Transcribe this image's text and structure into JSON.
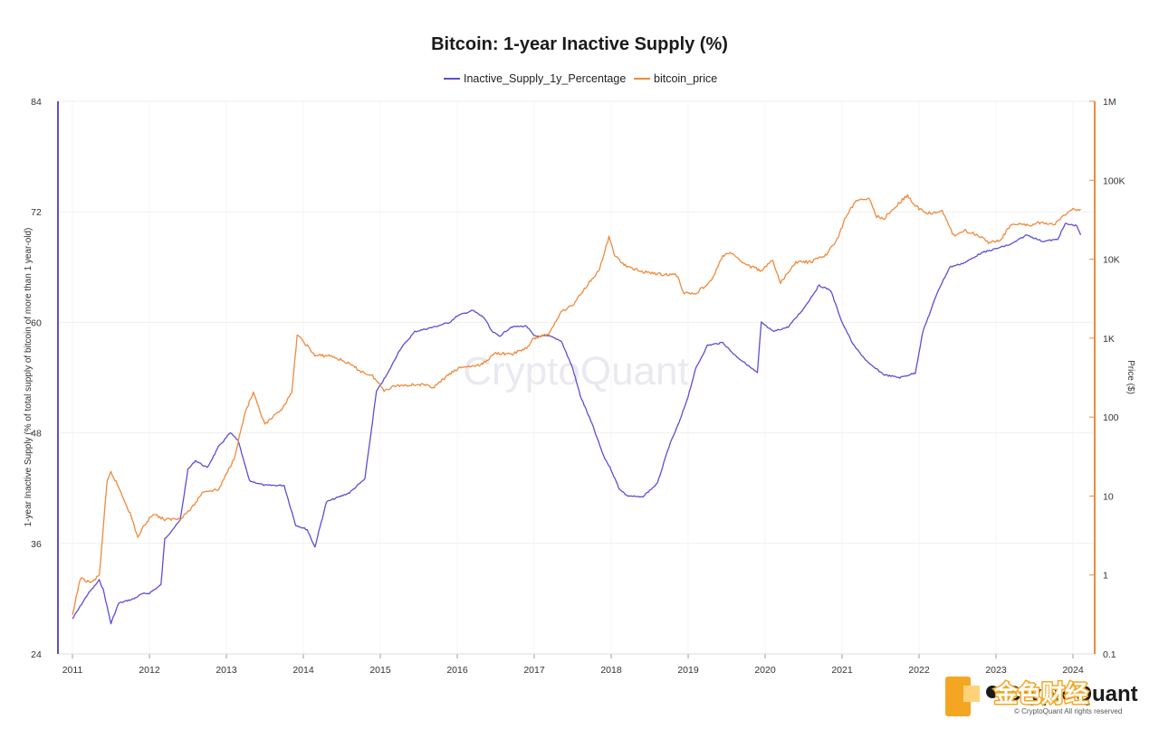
{
  "chart_data": {
    "type": "line",
    "title": "Bitcoin: 1-year Inactive Supply (%)",
    "x_ticks": [
      "2011",
      "2012",
      "2013",
      "2014",
      "2015",
      "2016",
      "2017",
      "2018",
      "2019",
      "2020",
      "2021",
      "2022",
      "2023",
      "2024"
    ],
    "y_left": {
      "label": "1-year Inactive Supply (% of total supply of bitcoin of more than 1 year-old)",
      "ylim": [
        24,
        84
      ],
      "ticks": [
        "84",
        "72",
        "60",
        "48",
        "36",
        "24"
      ]
    },
    "y_right": {
      "label": "Price ($)",
      "scale": "log",
      "ylim": [
        0.1,
        1000000
      ],
      "ticks": [
        "1M",
        "100K",
        "10K",
        "1K",
        "100",
        "10",
        "1",
        "0.1"
      ]
    },
    "grid": true,
    "legend": "top-center",
    "series": [
      {
        "name": "Inactive_Supply_1y_Percentage",
        "axis": "left",
        "color": "#5b4fd6",
        "points": [
          [
            2011.0,
            27.8
          ],
          [
            2011.2,
            30.5
          ],
          [
            2011.35,
            32.0
          ],
          [
            2011.4,
            31.0
          ],
          [
            2011.5,
            27.3
          ],
          [
            2011.6,
            29.5
          ],
          [
            2011.8,
            30.0
          ],
          [
            2011.9,
            30.5
          ],
          [
            2012.0,
            30.6
          ],
          [
            2012.15,
            31.5
          ],
          [
            2012.2,
            36.5
          ],
          [
            2012.4,
            38.5
          ],
          [
            2012.5,
            44.0
          ],
          [
            2012.6,
            45.0
          ],
          [
            2012.75,
            44.2
          ],
          [
            2012.9,
            46.5
          ],
          [
            2013.05,
            48.0
          ],
          [
            2013.15,
            47.2
          ],
          [
            2013.3,
            42.8
          ],
          [
            2013.5,
            42.3
          ],
          [
            2013.75,
            42.3
          ],
          [
            2013.9,
            38.0
          ],
          [
            2014.05,
            37.5
          ],
          [
            2014.15,
            35.6
          ],
          [
            2014.3,
            40.5
          ],
          [
            2014.6,
            41.5
          ],
          [
            2014.8,
            43.0
          ],
          [
            2014.95,
            52.5
          ],
          [
            2015.1,
            54.5
          ],
          [
            2015.25,
            57.0
          ],
          [
            2015.45,
            59.0
          ],
          [
            2015.7,
            59.5
          ],
          [
            2015.9,
            60.0
          ],
          [
            2016.0,
            60.7
          ],
          [
            2016.2,
            61.3
          ],
          [
            2016.35,
            60.5
          ],
          [
            2016.45,
            59.0
          ],
          [
            2016.55,
            58.5
          ],
          [
            2016.7,
            59.5
          ],
          [
            2016.9,
            59.6
          ],
          [
            2017.0,
            58.5
          ],
          [
            2017.2,
            58.5
          ],
          [
            2017.35,
            58.0
          ],
          [
            2017.5,
            55.0
          ],
          [
            2017.6,
            52.0
          ],
          [
            2017.75,
            49.0
          ],
          [
            2017.9,
            45.5
          ],
          [
            2018.0,
            44.0
          ],
          [
            2018.1,
            42.0
          ],
          [
            2018.2,
            41.2
          ],
          [
            2018.4,
            41.0
          ],
          [
            2018.6,
            42.5
          ],
          [
            2018.75,
            46.5
          ],
          [
            2018.9,
            49.5
          ],
          [
            2019.0,
            52.0
          ],
          [
            2019.1,
            55.0
          ],
          [
            2019.25,
            57.5
          ],
          [
            2019.45,
            57.8
          ],
          [
            2019.6,
            56.5
          ],
          [
            2019.75,
            55.5
          ],
          [
            2019.9,
            54.5
          ],
          [
            2019.95,
            60.0
          ],
          [
            2020.1,
            59.0
          ],
          [
            2020.3,
            59.5
          ],
          [
            2020.5,
            61.5
          ],
          [
            2020.7,
            64.0
          ],
          [
            2020.85,
            63.5
          ],
          [
            2021.0,
            60.0
          ],
          [
            2021.15,
            57.5
          ],
          [
            2021.35,
            55.5
          ],
          [
            2021.55,
            54.3
          ],
          [
            2021.75,
            54.0
          ],
          [
            2021.95,
            54.5
          ],
          [
            2022.05,
            59.0
          ],
          [
            2022.25,
            63.5
          ],
          [
            2022.4,
            66.0
          ],
          [
            2022.6,
            66.5
          ],
          [
            2022.8,
            67.5
          ],
          [
            2023.0,
            68.0
          ],
          [
            2023.2,
            68.5
          ],
          [
            2023.4,
            69.5
          ],
          [
            2023.6,
            68.8
          ],
          [
            2023.8,
            69.0
          ],
          [
            2023.9,
            70.7
          ],
          [
            2024.05,
            70.5
          ],
          [
            2024.1,
            69.5
          ]
        ]
      },
      {
        "name": "bitcoin_price",
        "axis": "right",
        "color": "#ef8a3c",
        "points": [
          [
            2011.0,
            0.3
          ],
          [
            2011.1,
            0.9
          ],
          [
            2011.25,
            0.8
          ],
          [
            2011.35,
            1.0
          ],
          [
            2011.45,
            15.0
          ],
          [
            2011.5,
            20.0
          ],
          [
            2011.6,
            13.0
          ],
          [
            2011.75,
            6.0
          ],
          [
            2011.85,
            3.0
          ],
          [
            2011.95,
            4.5
          ],
          [
            2012.05,
            6.0
          ],
          [
            2012.2,
            5.0
          ],
          [
            2012.4,
            5.2
          ],
          [
            2012.55,
            7.0
          ],
          [
            2012.7,
            11.5
          ],
          [
            2012.9,
            12.0
          ],
          [
            2013.1,
            30.0
          ],
          [
            2013.25,
            120.0
          ],
          [
            2013.35,
            200.0
          ],
          [
            2013.5,
            80.0
          ],
          [
            2013.7,
            120.0
          ],
          [
            2013.85,
            200.0
          ],
          [
            2013.92,
            1100.0
          ],
          [
            2014.05,
            800.0
          ],
          [
            2014.15,
            600.0
          ],
          [
            2014.35,
            600.0
          ],
          [
            2014.55,
            500.0
          ],
          [
            2014.75,
            380.0
          ],
          [
            2014.9,
            330.0
          ],
          [
            2015.05,
            220.0
          ],
          [
            2015.2,
            250.0
          ],
          [
            2015.5,
            260.0
          ],
          [
            2015.7,
            240.0
          ],
          [
            2015.9,
            350.0
          ],
          [
            2016.05,
            430.0
          ],
          [
            2016.3,
            450.0
          ],
          [
            2016.5,
            650.0
          ],
          [
            2016.7,
            620.0
          ],
          [
            2016.9,
            750.0
          ],
          [
            2017.0,
            1000.0
          ],
          [
            2017.2,
            1150.0
          ],
          [
            2017.35,
            2200.0
          ],
          [
            2017.5,
            2600.0
          ],
          [
            2017.65,
            4200.0
          ],
          [
            2017.85,
            7500.0
          ],
          [
            2017.97,
            19000.0
          ],
          [
            2018.05,
            11000.0
          ],
          [
            2018.2,
            8000.0
          ],
          [
            2018.4,
            7000.0
          ],
          [
            2018.6,
            6500.0
          ],
          [
            2018.85,
            6300.0
          ],
          [
            2018.95,
            3700.0
          ],
          [
            2019.1,
            3700.0
          ],
          [
            2019.3,
            5300.0
          ],
          [
            2019.45,
            11000.0
          ],
          [
            2019.55,
            12000.0
          ],
          [
            2019.75,
            8500.0
          ],
          [
            2019.95,
            7200.0
          ],
          [
            2020.1,
            9500.0
          ],
          [
            2020.2,
            5000.0
          ],
          [
            2020.4,
            9200.0
          ],
          [
            2020.6,
            9200.0
          ],
          [
            2020.8,
            11500.0
          ],
          [
            2020.95,
            19000.0
          ],
          [
            2021.05,
            35000.0
          ],
          [
            2021.2,
            57000.0
          ],
          [
            2021.35,
            58000.0
          ],
          [
            2021.45,
            35000.0
          ],
          [
            2021.55,
            33000.0
          ],
          [
            2021.7,
            47000.0
          ],
          [
            2021.85,
            65000.0
          ],
          [
            2021.95,
            47000.0
          ],
          [
            2022.1,
            38000.0
          ],
          [
            2022.3,
            40000.0
          ],
          [
            2022.45,
            20000.0
          ],
          [
            2022.6,
            23000.0
          ],
          [
            2022.8,
            19500.0
          ],
          [
            2022.9,
            16500.0
          ],
          [
            2023.05,
            17000.0
          ],
          [
            2023.2,
            28000.0
          ],
          [
            2023.45,
            27000.0
          ],
          [
            2023.6,
            29500.0
          ],
          [
            2023.75,
            27000.0
          ],
          [
            2023.9,
            37000.0
          ],
          [
            2024.0,
            43000.0
          ],
          [
            2024.1,
            43000.0
          ]
        ]
      }
    ]
  },
  "watermark": "CryptoQuant",
  "footer": {
    "brand": "CryptoQuant",
    "copyright": "© CryptoQuant All rights reserved",
    "overlay_text": "金色财经"
  }
}
